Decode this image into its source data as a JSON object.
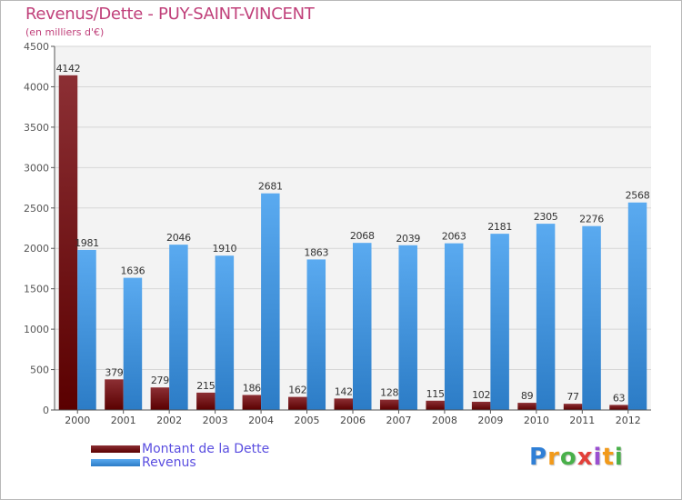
{
  "title": "Revenus/Dette - PUY-SAINT-VINCENT",
  "subtitle": "(en milliers d'€)",
  "colors": {
    "dette": "#6e0a0a",
    "revenus": "#3a8fdc",
    "title": "#c0407a",
    "legend_text": "#5a4ee0"
  },
  "legend": [
    {
      "label": "Montant de la Dette",
      "color": "#6e0a0a"
    },
    {
      "label": "Revenus",
      "color": "#3a8fdc"
    }
  ],
  "logo": {
    "text": "Proxiti",
    "letters": [
      "P",
      "r",
      "o",
      "x",
      "i",
      "t",
      "i"
    ]
  },
  "chart_data": {
    "type": "bar",
    "categories": [
      "2000",
      "2001",
      "2002",
      "2003",
      "2004",
      "2005",
      "2006",
      "2007",
      "2008",
      "2009",
      "2010",
      "2011",
      "2012"
    ],
    "series": [
      {
        "name": "Montant de la Dette",
        "values": [
          4142,
          379,
          279,
          215,
          186,
          162,
          142,
          128,
          115,
          102,
          89,
          77,
          63
        ]
      },
      {
        "name": "Revenus",
        "values": [
          1981,
          1636,
          2046,
          1910,
          2681,
          1863,
          2068,
          2039,
          2063,
          2181,
          2305,
          2276,
          2568
        ]
      }
    ],
    "yticks": [
      "0",
      "500",
      "1000",
      "1500",
      "2000",
      "2500",
      "3000",
      "3500",
      "4000",
      "4500"
    ],
    "ylim": [
      0,
      4500
    ],
    "grid": true,
    "legend_position": "bottom-left"
  }
}
